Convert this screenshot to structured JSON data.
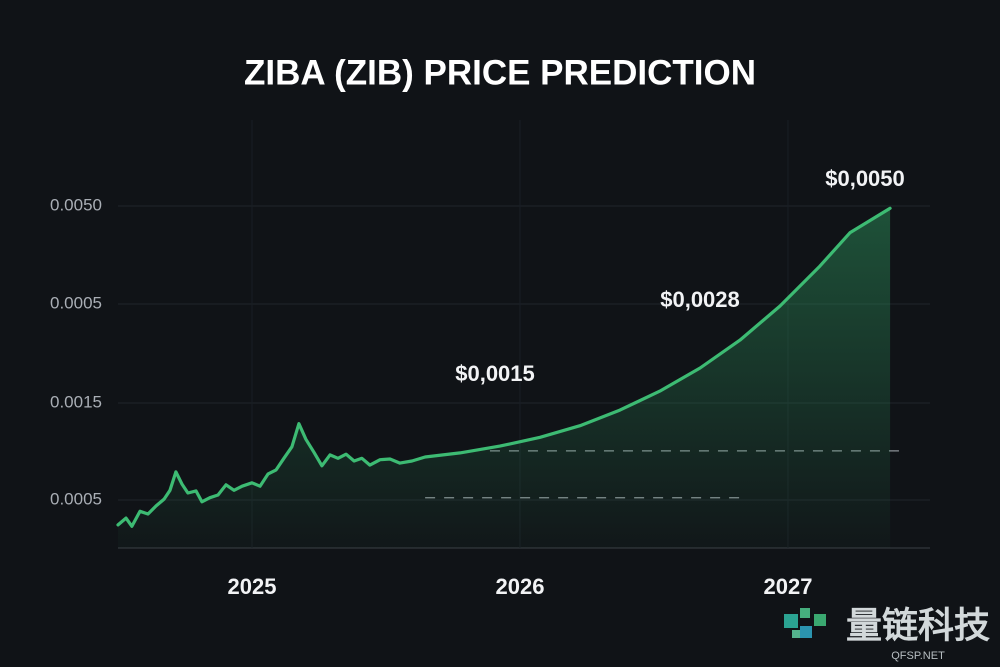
{
  "chart_data": {
    "type": "line",
    "title": "ZIBA (ZIB) PRICE PREDICTION",
    "y_axis_labels": [
      "0.0050",
      "0.0005",
      "0.0015",
      "0.0005"
    ],
    "xlim": [
      2024.5,
      2027.53
    ],
    "ylim": [
      0,
      0.0063
    ],
    "xticks": [
      2025,
      2026,
      2027
    ],
    "series": [
      {
        "color": "#3dbb73",
        "x": [
          2024.5,
          2024.53,
          2024.552,
          2024.582,
          2024.612,
          2024.642,
          2024.672,
          2024.694,
          2024.716,
          2024.739,
          2024.761,
          2024.791,
          2024.813,
          2024.843,
          2024.873,
          2024.903,
          2024.933,
          2024.963,
          2025.0,
          2025.03,
          2025.06,
          2025.09,
          2025.119,
          2025.149,
          2025.175,
          2025.201,
          2025.231,
          2025.261,
          2025.291,
          2025.321,
          2025.351,
          2025.381,
          2025.41,
          2025.44,
          2025.478,
          2025.515,
          2025.552,
          2025.597,
          2025.646,
          2025.776,
          2025.925,
          2026.075,
          2026.224,
          2026.373,
          2026.522,
          2026.672,
          2026.821,
          2026.97,
          2027.119,
          2027.231,
          2027.381
        ],
        "values": [
          0.00034,
          0.00044,
          0.00032,
          0.00054,
          0.0005,
          0.00062,
          0.00072,
          0.00085,
          0.00112,
          0.00094,
          0.00081,
          0.00084,
          0.00068,
          0.00074,
          0.00078,
          0.00093,
          0.00085,
          0.00091,
          0.00096,
          0.00091,
          0.00109,
          0.00115,
          0.00132,
          0.00149,
          0.00183,
          0.0016,
          0.00141,
          0.00121,
          0.00137,
          0.00132,
          0.00138,
          0.00128,
          0.00132,
          0.00122,
          0.0013,
          0.00131,
          0.00125,
          0.00128,
          0.00134,
          0.0014,
          0.0015,
          0.00163,
          0.0018,
          0.00203,
          0.00231,
          0.00265,
          0.00306,
          0.00356,
          0.00415,
          0.00464,
          0.005
        ]
      }
    ],
    "reference_lines": [
      {
        "value": 0.00143,
        "x": [
          2025.888,
          2027.437
        ]
      },
      {
        "value": 0.00074,
        "x": [
          2025.646,
          2026.821
        ]
      }
    ],
    "annotations": [
      "$0,0050",
      "$0,0028",
      "$0,0015"
    ]
  },
  "watermark": {
    "name": "量链科技",
    "site": "QFSP.NET"
  }
}
